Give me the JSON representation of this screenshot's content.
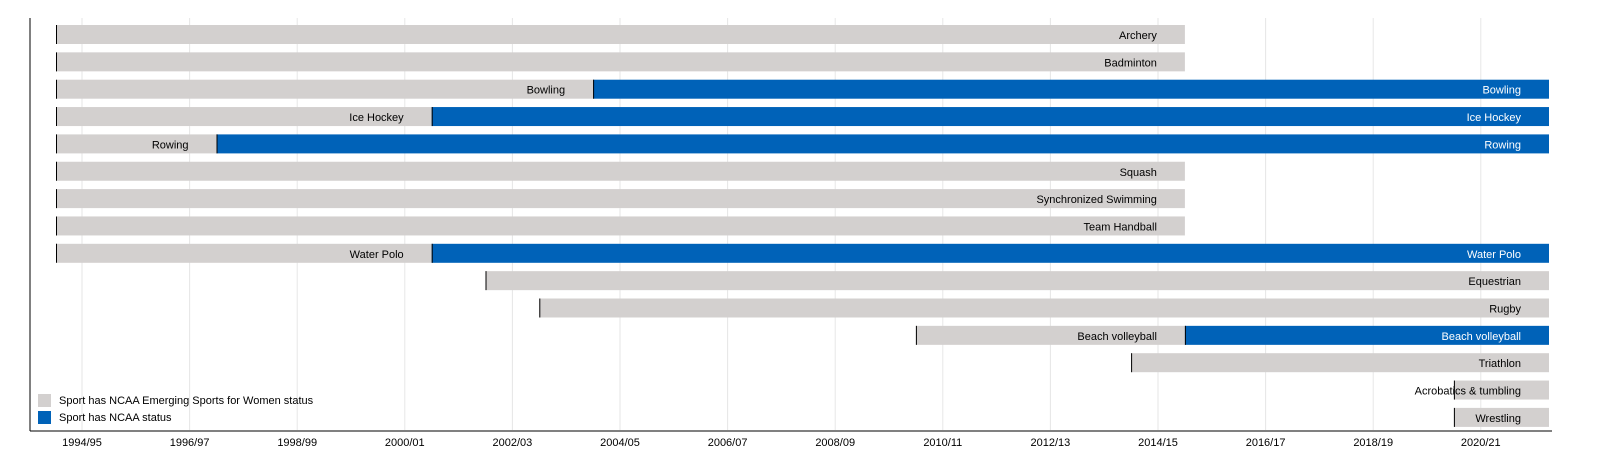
{
  "chart_data": {
    "type": "bar",
    "subtype": "timeline",
    "title": "",
    "xlabel": "",
    "ylabel": "",
    "x_tick_labels": [
      "1994/95",
      "1996/97",
      "1998/99",
      "2000/01",
      "2002/03",
      "2004/05",
      "2006/07",
      "2008/09",
      "2010/11",
      "2012/13",
      "2014/15",
      "2016/17",
      "2018/19",
      "2020/21"
    ],
    "x_range": [
      "1994/95",
      "2021/22"
    ],
    "colors": {
      "emerging": "#d3d0cf",
      "ncaa": "#0062b8"
    },
    "legend": {
      "placement": "bottom-left",
      "items": [
        {
          "key": "emerging",
          "label": "Sport has NCAA Emerging Sports for Women status"
        },
        {
          "key": "ncaa",
          "label": "Sport has NCAA status"
        }
      ]
    },
    "sports": [
      {
        "name": "Archery",
        "segments": [
          {
            "status": "emerging",
            "start": "1994/95",
            "end": "2014/15"
          }
        ]
      },
      {
        "name": "Badminton",
        "segments": [
          {
            "status": "emerging",
            "start": "1994/95",
            "end": "2014/15"
          }
        ]
      },
      {
        "name": "Bowling",
        "segments": [
          {
            "status": "emerging",
            "start": "1994/95",
            "end": "2003/04"
          },
          {
            "status": "ncaa",
            "start": "2004/05",
            "end": "2021/22"
          }
        ]
      },
      {
        "name": "Ice Hockey",
        "segments": [
          {
            "status": "emerging",
            "start": "1994/95",
            "end": "2000/01"
          },
          {
            "status": "ncaa",
            "start": "2001/02",
            "end": "2021/22"
          }
        ]
      },
      {
        "name": "Rowing",
        "segments": [
          {
            "status": "emerging",
            "start": "1994/95",
            "end": "1996/97"
          },
          {
            "status": "ncaa",
            "start": "1997/98",
            "end": "2021/22"
          }
        ]
      },
      {
        "name": "Squash",
        "segments": [
          {
            "status": "emerging",
            "start": "1994/95",
            "end": "2014/15"
          }
        ]
      },
      {
        "name": "Synchronized Swimming",
        "segments": [
          {
            "status": "emerging",
            "start": "1994/95",
            "end": "2014/15"
          }
        ]
      },
      {
        "name": "Team Handball",
        "segments": [
          {
            "status": "emerging",
            "start": "1994/95",
            "end": "2014/15"
          }
        ]
      },
      {
        "name": "Water Polo",
        "segments": [
          {
            "status": "emerging",
            "start": "1994/95",
            "end": "2000/01"
          },
          {
            "status": "ncaa",
            "start": "2001/02",
            "end": "2021/22"
          }
        ]
      },
      {
        "name": "Equestrian",
        "segments": [
          {
            "status": "emerging",
            "start": "2002/03",
            "end": "2021/22"
          }
        ]
      },
      {
        "name": "Rugby",
        "segments": [
          {
            "status": "emerging",
            "start": "2003/04",
            "end": "2021/22"
          }
        ]
      },
      {
        "name": "Beach volleyball",
        "segments": [
          {
            "status": "emerging",
            "start": "2010/11",
            "end": "2014/15"
          },
          {
            "status": "ncaa",
            "start": "2015/16",
            "end": "2021/22"
          }
        ]
      },
      {
        "name": "Triathlon",
        "segments": [
          {
            "status": "emerging",
            "start": "2014/15",
            "end": "2021/22"
          }
        ]
      },
      {
        "name": "Acrobatics & tumbling",
        "segments": [
          {
            "status": "emerging",
            "start": "2020/21",
            "end": "2021/22"
          }
        ]
      },
      {
        "name": "Wrestling",
        "segments": [
          {
            "status": "emerging",
            "start": "2020/21",
            "end": "2021/22"
          }
        ]
      }
    ]
  }
}
